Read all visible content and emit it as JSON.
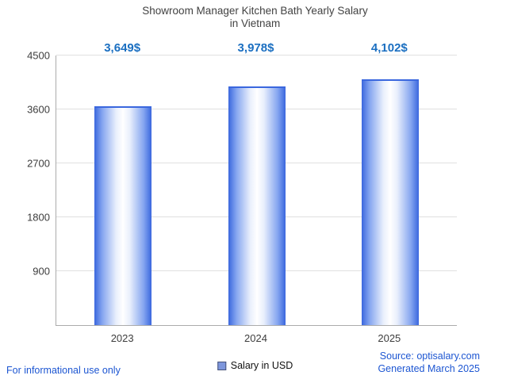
{
  "title_line1": "Showroom Manager Kitchen Bath Yearly Salary",
  "title_line2": "in Vietnam",
  "legend_label": "Salary in USD",
  "footer": {
    "left": "For informational use only",
    "source": "Source: optisalary.com",
    "generated": "Generated March 2025"
  },
  "colors": {
    "bar_edge": "#3a67de",
    "bar_center": "#ffffff",
    "value_label": "#1b6fc1",
    "footer_link": "#1d56d2",
    "grid": "#e0e0e0",
    "axis": "#ababab",
    "title_text": "#424242"
  },
  "chart_data": {
    "type": "bar",
    "title": "Showroom Manager Kitchen Bath Yearly Salary in Vietnam",
    "categories": [
      "2023",
      "2024",
      "2025"
    ],
    "values": [
      3649,
      3978,
      4102
    ],
    "value_labels": [
      "3,649$",
      "3,978$",
      "4,102$"
    ],
    "series_name": "Salary in USD",
    "xlabel": "",
    "ylabel": "",
    "ylim": [
      0,
      4500
    ],
    "yticks": [
      900,
      1800,
      2700,
      3600,
      4500
    ],
    "grid": true,
    "legend_position": "bottom"
  }
}
